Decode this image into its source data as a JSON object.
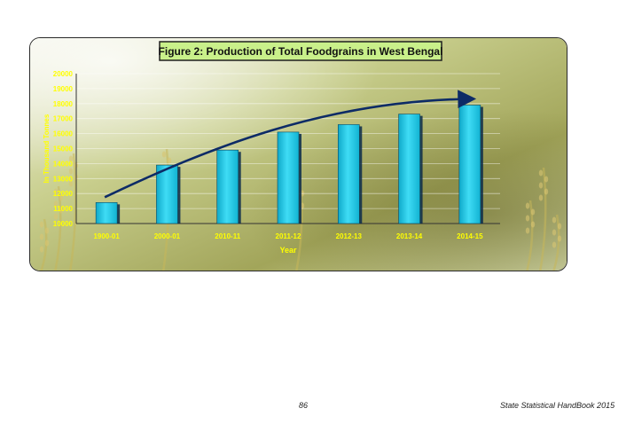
{
  "chart_data": {
    "type": "bar",
    "title": "Figure 2: Production of Total Foodgrains  in West Bengal",
    "xlabel": "Year",
    "ylabel": "In Thousand Tonnes",
    "categories": [
      "1900-01",
      "2000-01",
      "2010-11",
      "2011-12",
      "2012-13",
      "2013-14",
      "2014-15"
    ],
    "values": [
      11400,
      13900,
      14900,
      16100,
      16600,
      17300,
      17900
    ],
    "ylim": [
      10000,
      20000
    ],
    "yticks": [
      10000,
      11000,
      12000,
      13000,
      14000,
      15000,
      16000,
      17000,
      18000,
      19000,
      20000
    ],
    "grid": true,
    "trend_arrow": true,
    "colors": {
      "bar": "#1fc6e4",
      "bar_shadow": "#0a2a4a",
      "tick_text": "#ffff00",
      "title_box": "#c9f08a",
      "arrow": "#0d2b66",
      "background_light": "#dce6c4",
      "background_dark": "#8a8f45"
    }
  },
  "footer": {
    "page_number": "86",
    "publication": "State Statistical HandBook 2015"
  }
}
